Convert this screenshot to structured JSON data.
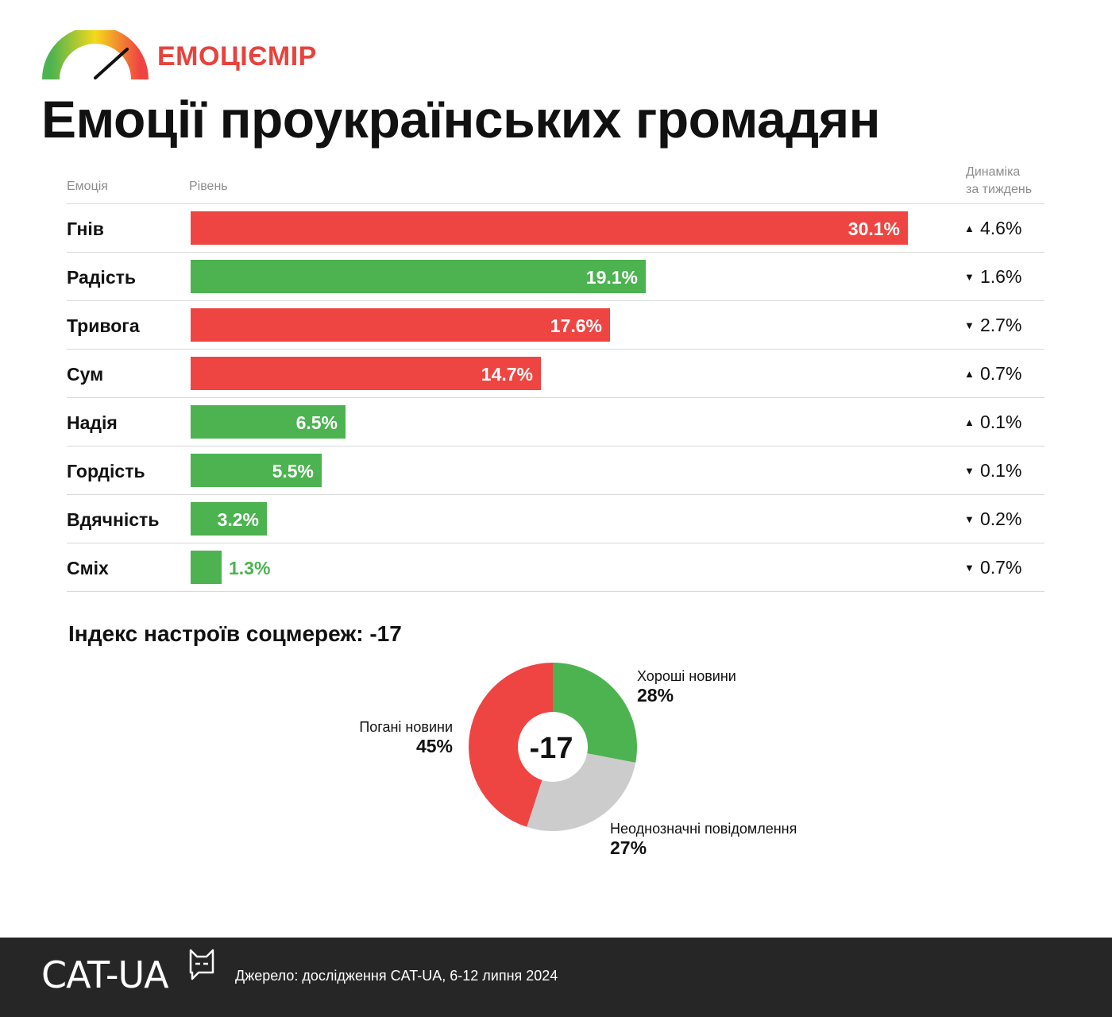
{
  "header": {
    "brand": "ЕМОЦІЄМІР",
    "title": "Емоції проукраїнських громадян"
  },
  "table": {
    "col_emotion": "Емоція",
    "col_level": "Рівень",
    "col_dynamics_line1": "Динаміка",
    "col_dynamics_line2": "за тиждень"
  },
  "colors": {
    "negative": "#ee4542",
    "positive": "#4cb350",
    "neutral": "#cccccc",
    "brand": "#e8423d",
    "footer": "#262626"
  },
  "chart_data": [
    {
      "type": "bar",
      "orientation": "horizontal",
      "categories": [
        "Гнів",
        "Радість",
        "Тривога",
        "Сум",
        "Надія",
        "Гордість",
        "Вдячність",
        "Сміх"
      ],
      "series": [
        {
          "values": [
            30.1,
            19.1,
            17.6,
            14.7,
            6.5,
            5.5,
            3.2,
            1.3
          ]
        }
      ],
      "value_labels": [
        "30.1%",
        "19.1%",
        "17.6%",
        "14.7%",
        "6.5%",
        "5.5%",
        "3.2%",
        "1.3%"
      ],
      "valence": [
        "negative",
        "positive",
        "negative",
        "negative",
        "positive",
        "positive",
        "positive",
        "positive"
      ],
      "weekly_change": {
        "direction": [
          "up",
          "down",
          "down",
          "up",
          "up",
          "down",
          "down",
          "down"
        ],
        "values": [
          "4.6%",
          "1.6%",
          "2.7%",
          "0.7%",
          "0.1%",
          "0.1%",
          "0.2%",
          "0.7%"
        ]
      },
      "xlim": [
        0,
        30.1
      ]
    },
    {
      "type": "pie",
      "title": "Індекс настроїв соцмереж: -17",
      "center_label": "-17",
      "slices": [
        {
          "name": "Хороші новини",
          "value": 28,
          "label": "28%",
          "color": "#4cb350"
        },
        {
          "name": "Неоднозначні повідомлення",
          "value": 27,
          "label": "27%",
          "color": "#cccccc"
        },
        {
          "name": "Погані новини",
          "value": 45,
          "label": "45%",
          "color": "#ee4542"
        }
      ]
    }
  ],
  "footer": {
    "logo": "CAT-UA",
    "source": "Джерело: дослідження CAT-UA, 6-12 липня 2024"
  }
}
